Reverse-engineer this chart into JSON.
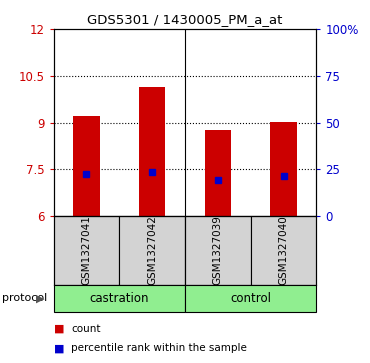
{
  "title": "GDS5301 / 1430005_PM_a_at",
  "samples": [
    "GSM1327041",
    "GSM1327042",
    "GSM1327039",
    "GSM1327040"
  ],
  "bar_bottoms": [
    6.0,
    6.0,
    6.0,
    6.0
  ],
  "bar_tops": [
    9.2,
    10.15,
    8.75,
    9.02
  ],
  "percentile_values": [
    7.35,
    7.4,
    7.15,
    7.28
  ],
  "ylim": [
    6,
    12
  ],
  "y_ticks_left": [
    6,
    7.5,
    9,
    10.5,
    12
  ],
  "ytick_labels_left": [
    "6",
    "7.5",
    "9",
    "10.5",
    "12"
  ],
  "ytick_labels_right": [
    "0",
    "25",
    "50",
    "75",
    "100%"
  ],
  "bar_color": "#cc0000",
  "percentile_color": "#0000cc",
  "group_labels": [
    "castration",
    "control"
  ],
  "protocol_label": "protocol",
  "legend_items": [
    {
      "color": "#cc0000",
      "label": "count"
    },
    {
      "color": "#0000cc",
      "label": "percentile rank within the sample"
    }
  ],
  "bg_label_area": "#d3d3d3",
  "bg_protocol": "#90ee90",
  "bar_width": 0.4
}
